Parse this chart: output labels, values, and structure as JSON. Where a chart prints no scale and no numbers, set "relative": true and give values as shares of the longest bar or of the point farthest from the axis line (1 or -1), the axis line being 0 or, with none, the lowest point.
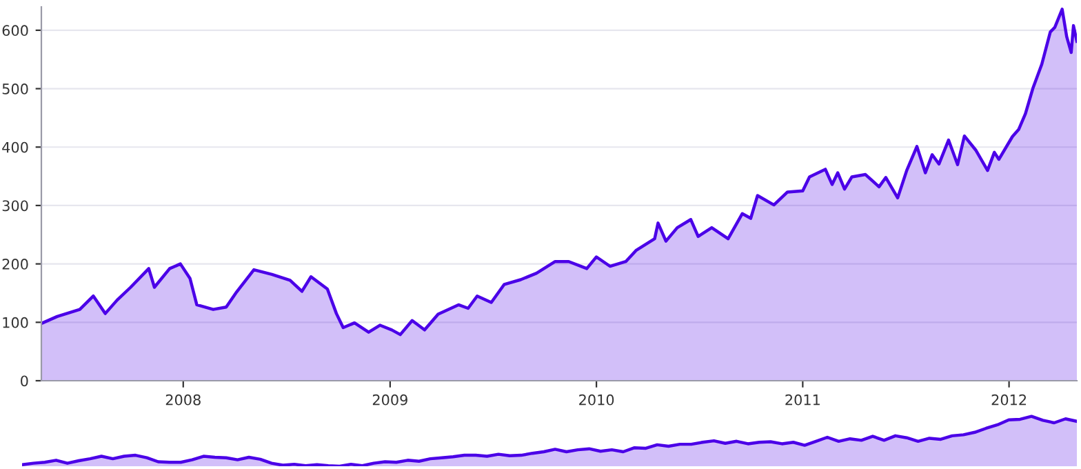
{
  "chart_data": [
    {
      "type": "area",
      "xlim": [
        "2007-04-25",
        "2012-04-30"
      ],
      "ylim": [
        0,
        640
      ],
      "yticks": [
        0,
        100,
        200,
        300,
        400,
        500,
        600
      ],
      "xticks": [
        {
          "value": "2008-01-01",
          "label": "2008"
        },
        {
          "value": "2009-01-01",
          "label": "2009"
        },
        {
          "value": "2010-01-01",
          "label": "2010"
        },
        {
          "value": "2011-01-01",
          "label": "2011"
        },
        {
          "value": "2012-01-01",
          "label": "2012"
        }
      ],
      "grid": "y",
      "x": [
        "2007-04-25",
        "2007-05-23",
        "2007-07-02",
        "2007-07-26",
        "2007-08-16",
        "2007-09-06",
        "2007-09-30",
        "2007-11-01",
        "2007-11-11",
        "2007-12-08",
        "2007-12-27",
        "2008-01-13",
        "2008-01-25",
        "2008-02-23",
        "2008-03-17",
        "2008-04-03",
        "2008-05-05",
        "2008-06-06",
        "2008-07-08",
        "2008-07-29",
        "2008-08-14",
        "2008-09-12",
        "2008-09-28",
        "2008-10-10",
        "2008-10-30",
        "2008-11-24",
        "2008-12-14",
        "2009-01-04",
        "2009-01-19",
        "2009-02-09",
        "2009-03-03",
        "2009-03-27",
        "2009-05-02",
        "2009-05-19",
        "2009-06-04",
        "2009-06-29",
        "2009-07-22",
        "2009-08-20",
        "2009-09-17",
        "2009-10-20",
        "2009-11-13",
        "2009-12-15",
        "2010-01-01",
        "2010-01-25",
        "2010-02-22",
        "2010-03-12",
        "2010-04-14",
        "2010-04-20",
        "2010-05-04",
        "2010-05-24",
        "2010-06-17",
        "2010-06-30",
        "2010-07-24",
        "2010-08-22",
        "2010-09-16",
        "2010-10-01",
        "2010-10-13",
        "2010-11-11",
        "2010-12-05",
        "2011-01-01",
        "2011-01-13",
        "2011-02-10",
        "2011-02-22",
        "2011-03-04",
        "2011-03-16",
        "2011-03-29",
        "2011-04-22",
        "2011-05-16",
        "2011-05-28",
        "2011-06-18",
        "2011-07-04",
        "2011-07-22",
        "2011-08-06",
        "2011-08-18",
        "2011-08-30",
        "2011-09-16",
        "2011-10-02",
        "2011-10-14",
        "2011-11-03",
        "2011-11-24",
        "2011-12-06",
        "2011-12-14",
        "2012-01-07",
        "2012-01-18",
        "2012-01-30",
        "2012-02-12",
        "2012-02-28",
        "2012-03-14",
        "2012-03-22",
        "2012-04-04",
        "2012-04-12",
        "2012-04-20",
        "2012-04-24",
        "2012-04-30"
      ],
      "series": [
        {
          "color": "#4b00e8",
          "values": [
            98,
            110,
            122,
            145,
            115,
            138,
            160,
            192,
            160,
            192,
            200,
            175,
            130,
            122,
            126,
            150,
            190,
            182,
            172,
            153,
            178,
            157,
            115,
            91,
            99,
            83,
            95,
            87,
            79,
            103,
            87,
            114,
            130,
            124,
            145,
            134,
            165,
            173,
            184,
            204,
            204,
            192,
            212,
            196,
            204,
            223,
            243,
            270,
            239,
            262,
            276,
            247,
            262,
            243,
            286,
            278,
            317,
            301,
            323,
            325,
            349,
            362,
            336,
            356,
            328,
            349,
            353,
            332,
            348,
            313,
            360,
            401,
            356,
            387,
            371,
            412,
            370,
            419,
            395,
            360,
            391,
            379,
            418,
            430,
            457,
            500,
            542,
            597,
            605,
            636,
            589,
            562,
            608,
            581
          ]
        }
      ]
    },
    {
      "type": "area",
      "relative": true,
      "categories": [
        null,
        null,
        null,
        null,
        null,
        null,
        null,
        null,
        null,
        null,
        null,
        null,
        null,
        null,
        null,
        null,
        null,
        null,
        null,
        null,
        null,
        null,
        null,
        null,
        null,
        null,
        null,
        null,
        null,
        null,
        null,
        null,
        null,
        null,
        null,
        null,
        null,
        null,
        null,
        null,
        null,
        null,
        null,
        null,
        null,
        null,
        null,
        null,
        null,
        null,
        null,
        null,
        null,
        null,
        null,
        null,
        null,
        null,
        null,
        null,
        null,
        null,
        null,
        null,
        null,
        null,
        null,
        null,
        null,
        null,
        null,
        null,
        null,
        null,
        null,
        null,
        null,
        null,
        null,
        null,
        null,
        null,
        null,
        null,
        null,
        null,
        null,
        null,
        null,
        null,
        null,
        null,
        null,
        null
      ],
      "series": [
        {
          "color": "#4b00e8",
          "values": [
            0.03,
            0.06,
            0.08,
            0.12,
            0.06,
            0.11,
            0.15,
            0.2,
            0.15,
            0.2,
            0.22,
            0.17,
            0.09,
            0.08,
            0.08,
            0.13,
            0.2,
            0.18,
            0.17,
            0.13,
            0.18,
            0.14,
            0.06,
            0.02,
            0.04,
            0.01,
            0.03,
            0.01,
            0,
            0.04,
            0.01,
            0.06,
            0.09,
            0.08,
            0.12,
            0.1,
            0.15,
            0.17,
            0.19,
            0.22,
            0.22,
            0.2,
            0.24,
            0.21,
            0.22,
            0.26,
            0.29,
            0.34,
            0.29,
            0.33,
            0.35,
            0.3,
            0.33,
            0.29,
            0.37,
            0.36,
            0.43,
            0.4,
            0.44,
            0.44,
            0.48,
            0.51,
            0.46,
            0.5,
            0.45,
            0.48,
            0.49,
            0.45,
            0.48,
            0.42,
            0.5,
            0.58,
            0.5,
            0.55,
            0.52,
            0.6,
            0.52,
            0.61,
            0.57,
            0.5,
            0.56,
            0.54,
            0.61,
            0.63,
            0.68,
            0.76,
            0.83,
            0.93,
            0.94,
            1,
            0.92,
            0.87,
            0.95,
            0.9
          ]
        }
      ]
    }
  ]
}
